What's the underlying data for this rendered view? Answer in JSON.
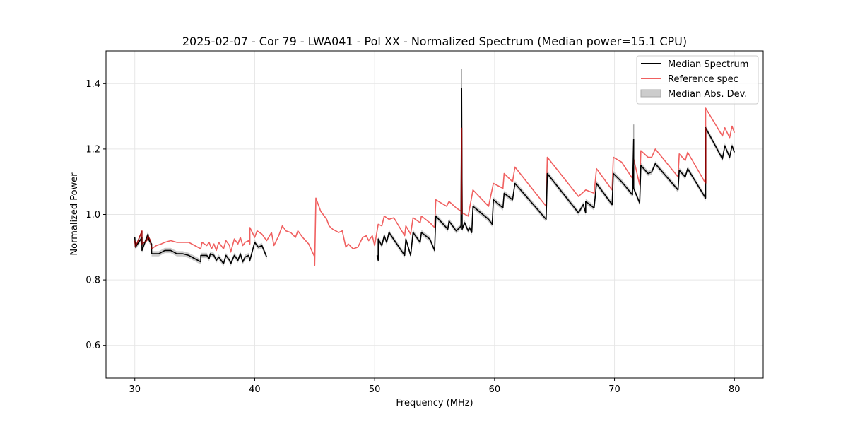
{
  "chart_data": {
    "type": "line",
    "title": "2025-02-07 - Cor 79 - LWA041 - Pol XX - Normalized Spectrum (Median power=15.1 CPU)",
    "xlabel": "Frequency (MHz)",
    "ylabel": "Normalized Power",
    "xlim": [
      27.6,
      82.4
    ],
    "ylim": [
      0.5,
      1.5
    ],
    "xticks": [
      30,
      40,
      50,
      60,
      70,
      80
    ],
    "yticks": [
      0.6,
      0.8,
      1.0,
      1.2,
      1.4
    ],
    "grid": true,
    "legend_position": "top-right",
    "colors": {
      "median": "#000000",
      "reference": "#f06060",
      "mad": "#bbbbbb",
      "overlap": "#8b0000"
    },
    "series": [
      {
        "name": "Median Spectrum",
        "segments": [
          [
            [
              30.0,
              0.93
            ],
            [
              30.05,
              0.9
            ],
            [
              30.6,
              0.93
            ],
            [
              30.6,
              0.89
            ],
            [
              31.0,
              0.93
            ],
            [
              31.1,
              0.94
            ],
            [
              31.2,
              0.92
            ],
            [
              31.4,
              0.91
            ],
            [
              31.4,
              0.88
            ],
            [
              32.0,
              0.88
            ],
            [
              32.5,
              0.89
            ],
            [
              33.0,
              0.89
            ],
            [
              33.5,
              0.88
            ],
            [
              34.0,
              0.88
            ],
            [
              34.5,
              0.875
            ],
            [
              35.0,
              0.865
            ],
            [
              35.5,
              0.855
            ],
            [
              35.5,
              0.875
            ],
            [
              36.0,
              0.875
            ],
            [
              36.2,
              0.865
            ],
            [
              36.3,
              0.88
            ],
            [
              36.6,
              0.875
            ],
            [
              36.8,
              0.86
            ],
            [
              37.0,
              0.87
            ],
            [
              37.4,
              0.85
            ],
            [
              37.6,
              0.875
            ],
            [
              37.9,
              0.86
            ],
            [
              38.0,
              0.85
            ],
            [
              38.3,
              0.875
            ],
            [
              38.6,
              0.86
            ],
            [
              38.8,
              0.88
            ],
            [
              39.0,
              0.855
            ],
            [
              39.2,
              0.87
            ],
            [
              39.5,
              0.875
            ],
            [
              39.6,
              0.86
            ],
            [
              40.0,
              0.915
            ],
            [
              40.3,
              0.9
            ],
            [
              40.6,
              0.905
            ],
            [
              41.0,
              0.87
            ]
          ],
          [
            [
              50.2,
              0.875
            ],
            [
              50.3,
              0.86
            ],
            [
              50.3,
              0.925
            ],
            [
              50.6,
              0.905
            ],
            [
              50.8,
              0.935
            ],
            [
              51.0,
              0.915
            ],
            [
              51.2,
              0.945
            ],
            [
              52.5,
              0.875
            ],
            [
              52.6,
              0.925
            ],
            [
              53.0,
              0.875
            ],
            [
              53.2,
              0.945
            ],
            [
              53.8,
              0.915
            ],
            [
              53.9,
              0.945
            ],
            [
              54.6,
              0.925
            ],
            [
              55.0,
              0.89
            ],
            [
              55.1,
              0.995
            ],
            [
              56.1,
              0.955
            ],
            [
              56.2,
              0.98
            ],
            [
              56.8,
              0.95
            ],
            [
              57.1,
              0.96
            ],
            [
              57.2,
              0.965
            ],
            [
              57.25,
              1.385
            ],
            [
              57.3,
              0.955
            ],
            [
              57.5,
              0.975
            ],
            [
              57.8,
              0.95
            ],
            [
              57.9,
              0.96
            ],
            [
              58.1,
              0.945
            ],
            [
              58.2,
              1.025
            ],
            [
              59.5,
              0.985
            ],
            [
              59.8,
              0.97
            ],
            [
              59.9,
              1.045
            ],
            [
              60.7,
              1.02
            ],
            [
              60.8,
              1.065
            ],
            [
              61.5,
              1.045
            ],
            [
              61.7,
              1.095
            ],
            [
              64.3,
              0.985
            ],
            [
              64.4,
              1.125
            ],
            [
              67.0,
              1.005
            ],
            [
              67.4,
              1.03
            ],
            [
              67.6,
              1.005
            ],
            [
              67.6,
              1.04
            ],
            [
              68.3,
              1.02
            ],
            [
              68.5,
              1.095
            ],
            [
              69.8,
              1.03
            ],
            [
              69.9,
              1.125
            ],
            [
              70.6,
              1.1
            ],
            [
              71.5,
              1.06
            ],
            [
              71.6,
              1.23
            ],
            [
              71.6,
              1.08
            ],
            [
              72.1,
              1.035
            ],
            [
              72.2,
              1.15
            ],
            [
              72.8,
              1.125
            ],
            [
              73.1,
              1.13
            ],
            [
              73.4,
              1.155
            ],
            [
              75.3,
              1.075
            ],
            [
              75.4,
              1.135
            ],
            [
              75.9,
              1.115
            ],
            [
              76.1,
              1.14
            ],
            [
              77.6,
              1.05
            ],
            [
              77.6,
              1.265
            ],
            [
              79.0,
              1.17
            ],
            [
              79.2,
              1.21
            ],
            [
              79.6,
              1.175
            ],
            [
              79.8,
              1.21
            ],
            [
              80.0,
              1.19
            ]
          ]
        ]
      },
      {
        "name": "Reference spec",
        "segments": [
          [
            [
              30.0,
              0.92
            ],
            [
              30.05,
              0.9
            ],
            [
              30.6,
              0.95
            ],
            [
              30.6,
              0.91
            ],
            [
              31.0,
              0.92
            ],
            [
              31.1,
              0.935
            ],
            [
              31.3,
              0.92
            ],
            [
              31.4,
              0.895
            ],
            [
              31.8,
              0.905
            ],
            [
              32.2,
              0.91
            ],
            [
              32.5,
              0.915
            ],
            [
              33.0,
              0.92
            ],
            [
              33.5,
              0.915
            ],
            [
              34.0,
              0.915
            ],
            [
              34.5,
              0.915
            ],
            [
              35.0,
              0.905
            ],
            [
              35.5,
              0.895
            ],
            [
              35.6,
              0.915
            ],
            [
              36.0,
              0.905
            ],
            [
              36.2,
              0.915
            ],
            [
              36.4,
              0.895
            ],
            [
              36.6,
              0.91
            ],
            [
              36.8,
              0.89
            ],
            [
              37.0,
              0.915
            ],
            [
              37.4,
              0.895
            ],
            [
              37.6,
              0.92
            ],
            [
              37.9,
              0.905
            ],
            [
              38.0,
              0.885
            ],
            [
              38.3,
              0.925
            ],
            [
              38.6,
              0.91
            ],
            [
              38.8,
              0.93
            ],
            [
              39.0,
              0.905
            ],
            [
              39.2,
              0.915
            ],
            [
              39.5,
              0.92
            ],
            [
              39.6,
              0.91
            ],
            [
              39.6,
              0.96
            ],
            [
              40.0,
              0.93
            ],
            [
              40.2,
              0.95
            ],
            [
              40.6,
              0.94
            ],
            [
              41.0,
              0.92
            ],
            [
              41.4,
              0.945
            ],
            [
              41.6,
              0.905
            ],
            [
              42.0,
              0.935
            ],
            [
              42.3,
              0.965
            ],
            [
              42.6,
              0.95
            ],
            [
              43.0,
              0.945
            ],
            [
              43.4,
              0.93
            ],
            [
              43.6,
              0.95
            ],
            [
              44.0,
              0.93
            ],
            [
              44.5,
              0.91
            ],
            [
              45.0,
              0.87
            ],
            [
              45.0,
              0.845
            ],
            [
              45.1,
              1.05
            ],
            [
              45.5,
              1.01
            ],
            [
              46.0,
              0.985
            ],
            [
              46.2,
              0.965
            ],
            [
              46.5,
              0.955
            ],
            [
              47.0,
              0.945
            ],
            [
              47.3,
              0.95
            ],
            [
              47.6,
              0.9
            ],
            [
              47.8,
              0.91
            ],
            [
              48.2,
              0.895
            ],
            [
              48.6,
              0.9
            ],
            [
              49.0,
              0.93
            ],
            [
              49.3,
              0.935
            ],
            [
              49.5,
              0.92
            ],
            [
              49.8,
              0.935
            ],
            [
              50.0,
              0.905
            ],
            [
              50.3,
              0.97
            ],
            [
              50.6,
              0.965
            ],
            [
              50.8,
              0.995
            ],
            [
              51.2,
              0.985
            ],
            [
              51.6,
              0.99
            ],
            [
              52.5,
              0.935
            ],
            [
              52.6,
              0.965
            ],
            [
              53.0,
              0.94
            ],
            [
              53.2,
              0.99
            ],
            [
              53.8,
              0.975
            ],
            [
              53.9,
              0.995
            ],
            [
              54.6,
              0.975
            ],
            [
              55.0,
              0.96
            ],
            [
              55.1,
              1.045
            ],
            [
              56.0,
              1.025
            ],
            [
              56.2,
              1.04
            ],
            [
              56.8,
              1.02
            ],
            [
              57.2,
              1.01
            ],
            [
              57.25,
              1.265
            ],
            [
              57.3,
              1.005
            ],
            [
              57.8,
              0.995
            ],
            [
              58.2,
              1.075
            ],
            [
              59.5,
              1.025
            ],
            [
              59.9,
              1.095
            ],
            [
              60.7,
              1.08
            ],
            [
              60.8,
              1.125
            ],
            [
              61.5,
              1.1
            ],
            [
              61.7,
              1.145
            ],
            [
              64.3,
              1.025
            ],
            [
              64.4,
              1.175
            ],
            [
              67.0,
              1.055
            ],
            [
              67.6,
              1.075
            ],
            [
              68.3,
              1.065
            ],
            [
              68.5,
              1.14
            ],
            [
              69.8,
              1.075
            ],
            [
              69.9,
              1.175
            ],
            [
              70.6,
              1.16
            ],
            [
              71.5,
              1.11
            ],
            [
              71.6,
              1.17
            ],
            [
              72.1,
              1.09
            ],
            [
              72.2,
              1.195
            ],
            [
              72.8,
              1.175
            ],
            [
              73.1,
              1.175
            ],
            [
              73.4,
              1.2
            ],
            [
              75.3,
              1.115
            ],
            [
              75.4,
              1.185
            ],
            [
              75.9,
              1.165
            ],
            [
              76.1,
              1.19
            ],
            [
              77.6,
              1.095
            ],
            [
              77.6,
              1.325
            ],
            [
              79.0,
              1.24
            ],
            [
              79.2,
              1.265
            ],
            [
              79.6,
              1.235
            ],
            [
              79.8,
              1.27
            ],
            [
              80.0,
              1.25
            ]
          ]
        ]
      }
    ],
    "legend": [
      {
        "label": "Median Spectrum",
        "style": "line",
        "key": "median"
      },
      {
        "label": "Reference spec",
        "style": "line",
        "key": "reference"
      },
      {
        "label": "Median Abs. Dev.",
        "style": "patch",
        "key": "mad"
      }
    ],
    "mad_band_width": 0.008,
    "mad_spikes": [
      {
        "x": 57.25,
        "y": 1.445
      },
      {
        "x": 71.6,
        "y": 1.275
      }
    ]
  }
}
